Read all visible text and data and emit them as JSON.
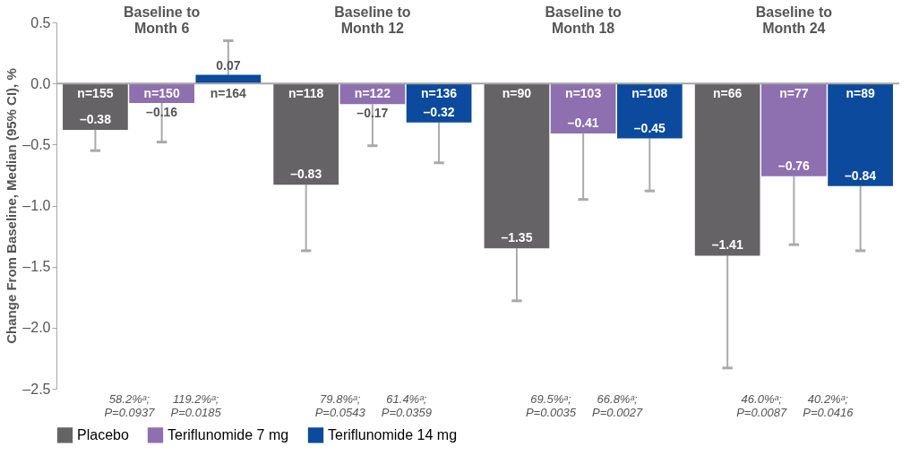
{
  "chart_data": {
    "type": "bar",
    "ylabel": "Change From Baseline, Median (95% CI), %",
    "categories": [
      "Baseline to Month 6",
      "Baseline to Month 12",
      "Baseline to Month 18",
      "Baseline to Month 24"
    ],
    "series": [
      {
        "name": "Placebo",
        "color": "#656365",
        "values": [
          -0.38,
          -0.83,
          -1.35,
          -1.41
        ],
        "errors": [
          [
            -0.55,
            -0.38
          ],
          [
            -1.37,
            -0.83
          ],
          [
            -1.78,
            -1.35
          ],
          [
            -2.33,
            -1.41
          ]
        ],
        "value_labels": [
          "–0.38",
          "–0.83",
          "–1.35",
          "–1.41"
        ]
      },
      {
        "name": "Teriflunomide 7 mg",
        "color": "#8e6fb0",
        "values": [
          -0.16,
          -0.17,
          -0.41,
          -0.76
        ],
        "errors": [
          [
            -0.48,
            -0.16
          ],
          [
            -0.51,
            -0.17
          ],
          [
            -0.95,
            -0.41
          ],
          [
            -1.32,
            -0.76
          ]
        ],
        "value_labels": [
          "–0.16",
          "–0.17",
          "–0.41",
          "–0.76"
        ]
      },
      {
        "name": "Teriflunomide 14 mg",
        "color": "#0b4a9c",
        "values": [
          0.07,
          -0.32,
          -0.45,
          -0.84
        ],
        "errors": [
          [
            0.07,
            0.35
          ],
          [
            -0.65,
            -0.32
          ],
          [
            -0.88,
            -0.45
          ],
          [
            -1.37,
            -0.84
          ]
        ],
        "value_labels": [
          "0.07",
          "–0.32",
          "–0.45",
          "–0.84"
        ]
      }
    ],
    "ylim": [
      -2.5,
      0.5
    ],
    "yticks": [
      {
        "value": 0.5,
        "label": "0.5"
      },
      {
        "value": 0,
        "label": "0.0"
      },
      {
        "value": -0.5,
        "label": "–0.5"
      },
      {
        "value": -1,
        "label": "–1.0"
      },
      {
        "value": -1.5,
        "label": "–1.5"
      },
      {
        "value": -2,
        "label": "–2.0"
      },
      {
        "value": -2.5,
        "label": "–2.5"
      }
    ],
    "ref_lines": [
      {
        "axis": "y",
        "value": 0,
        "color": "#a6a6a6"
      }
    ],
    "annotations": [
      "n=155",
      "n=150",
      "n=164",
      "n=118",
      "n=122",
      "n=136",
      "n=90",
      "n=103",
      "n=108",
      "n=66",
      "n=77",
      "n=89",
      "58.2%ᵃ;\nP=0.0937",
      "119.2%ᵃ;\nP=0.0185",
      "79.8%ᵃ;\nP=0.0543",
      "61.4%ᵃ;\nP=0.0359",
      "69.5%ᵃ;\nP=0.0035",
      "66.8%ᵃ;\nP=0.0027",
      "46.0%ᵃ;\nP=0.0087",
      "40.2%ᵃ;\nP=0.0416"
    ],
    "grid": false,
    "legend": "bottom"
  }
}
